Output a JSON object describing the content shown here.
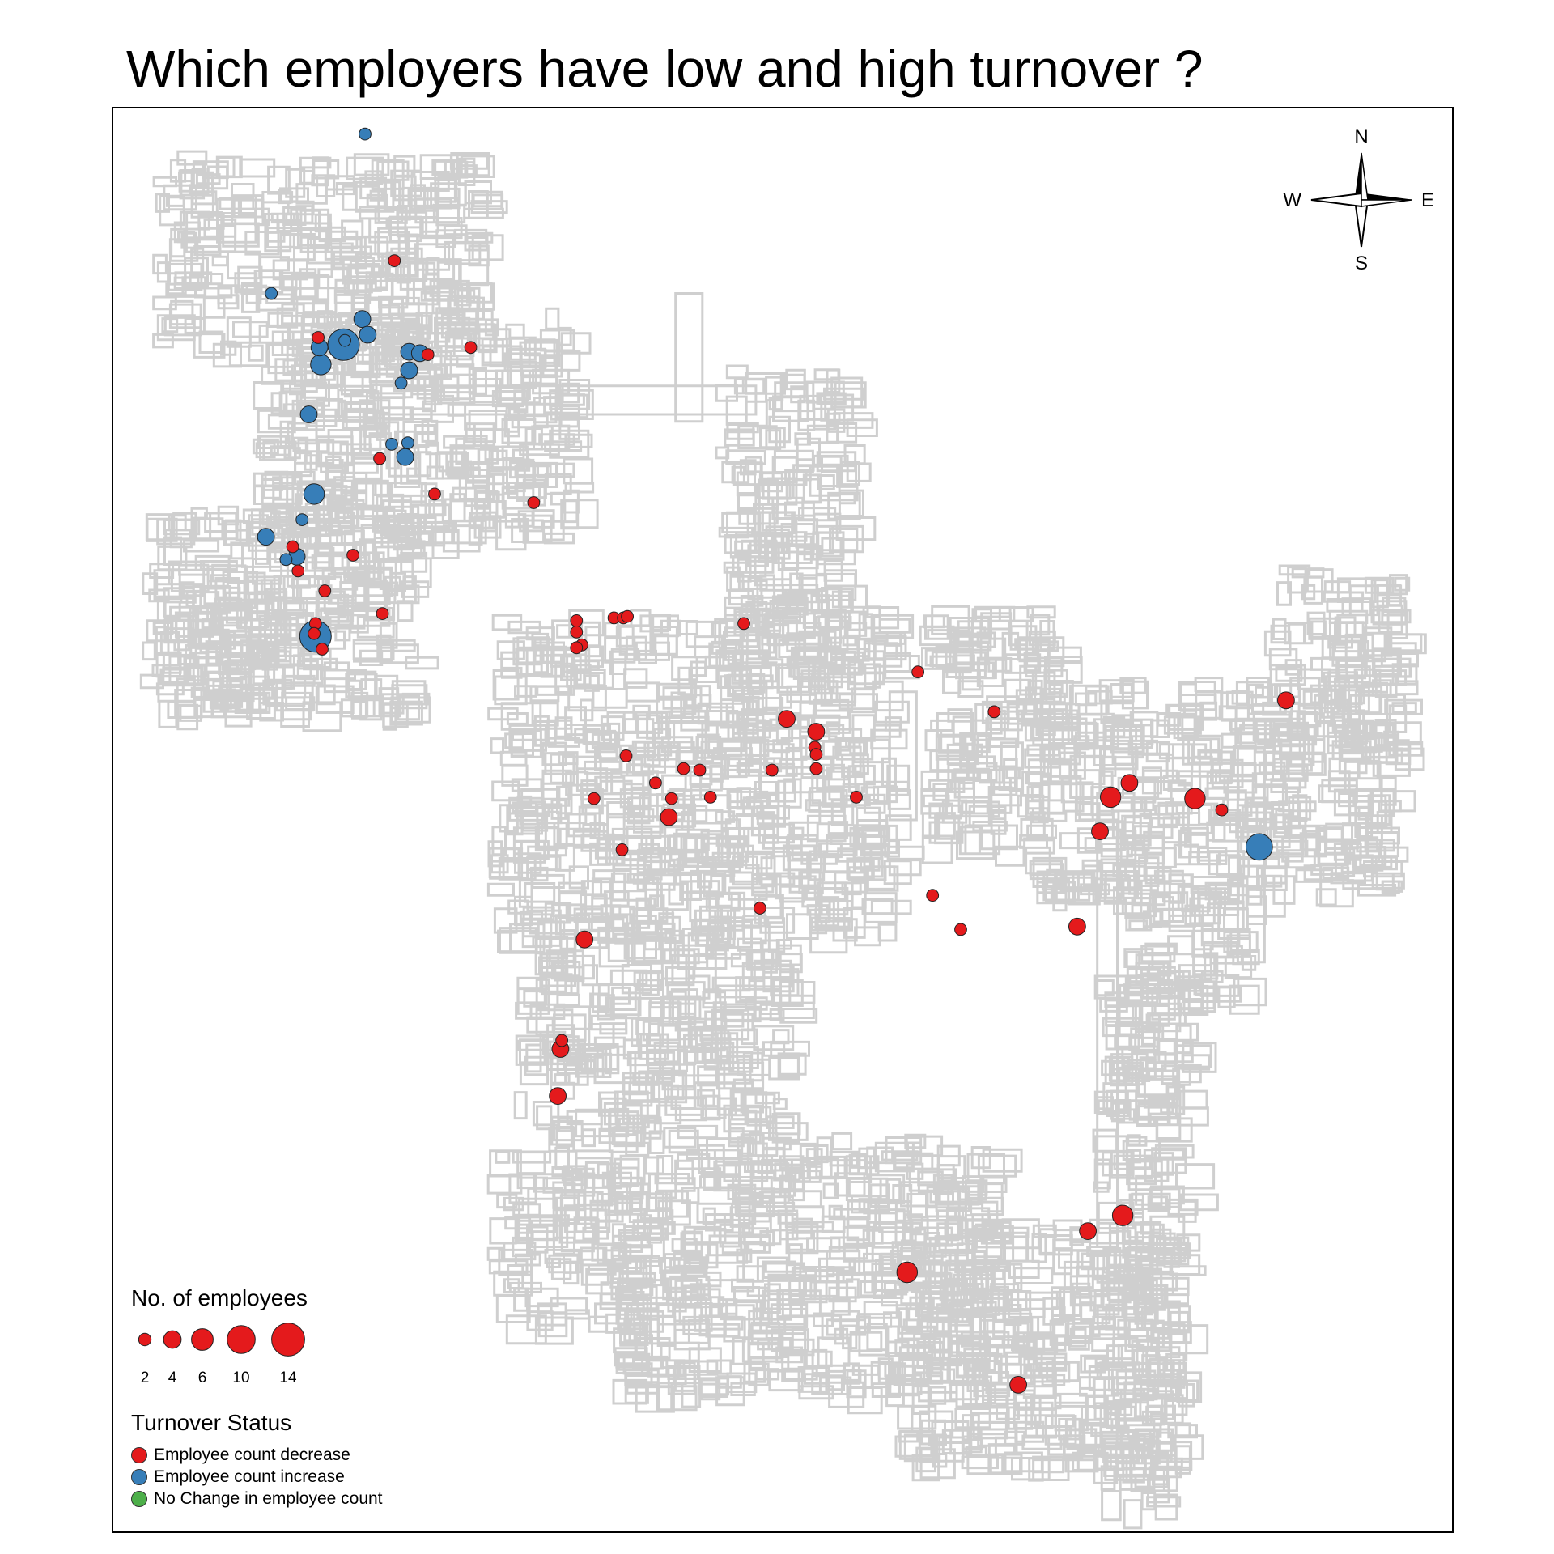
{
  "title": "Which employers have low and high turnover ?",
  "compass": {
    "n": "N",
    "s": "S",
    "e": "E",
    "w": "W"
  },
  "legend": {
    "size_title": "No. of employees",
    "sizes": [
      {
        "label": "2",
        "value": 2
      },
      {
        "label": "4",
        "value": 4
      },
      {
        "label": "6",
        "value": 6
      },
      {
        "label": "10",
        "value": 10
      },
      {
        "label": "14",
        "value": 14
      }
    ],
    "status_title": "Turnover Status",
    "statuses": [
      {
        "key": "decrease",
        "label": "Employee count decrease",
        "color": "#e41a1c"
      },
      {
        "key": "increase",
        "label": "Employee count increase",
        "color": "#377eb8"
      },
      {
        "key": "nochange",
        "label": "No Change in employee count",
        "color": "#4daf4a"
      }
    ]
  },
  "colors": {
    "road": "#cfcfcf",
    "frame": "#000000",
    "outline": "#222222"
  },
  "chart_data": {
    "type": "scatter",
    "description_units": "x,y are normalized map coordinates (0=west/north, 1=east/south); size = number of employees",
    "points": [
      {
        "x": 0.188,
        "y": 0.018,
        "size": 2,
        "status": "increase"
      },
      {
        "x": 0.21,
        "y": 0.107,
        "size": 2,
        "status": "decrease"
      },
      {
        "x": 0.118,
        "y": 0.13,
        "size": 2,
        "status": "increase"
      },
      {
        "x": 0.186,
        "y": 0.148,
        "size": 4,
        "status": "increase"
      },
      {
        "x": 0.19,
        "y": 0.159,
        "size": 4,
        "status": "increase"
      },
      {
        "x": 0.153,
        "y": 0.161,
        "size": 2,
        "status": "decrease"
      },
      {
        "x": 0.172,
        "y": 0.166,
        "size": 14,
        "status": "increase"
      },
      {
        "x": 0.154,
        "y": 0.168,
        "size": 4,
        "status": "increase"
      },
      {
        "x": 0.173,
        "y": 0.163,
        "size": 2,
        "status": "increase"
      },
      {
        "x": 0.221,
        "y": 0.171,
        "size": 4,
        "status": "increase"
      },
      {
        "x": 0.229,
        "y": 0.172,
        "size": 4,
        "status": "increase"
      },
      {
        "x": 0.235,
        "y": 0.173,
        "size": 2,
        "status": "decrease"
      },
      {
        "x": 0.267,
        "y": 0.168,
        "size": 2,
        "status": "decrease"
      },
      {
        "x": 0.155,
        "y": 0.18,
        "size": 6,
        "status": "increase"
      },
      {
        "x": 0.221,
        "y": 0.184,
        "size": 4,
        "status": "increase"
      },
      {
        "x": 0.215,
        "y": 0.193,
        "size": 2,
        "status": "increase"
      },
      {
        "x": 0.146,
        "y": 0.215,
        "size": 4,
        "status": "increase"
      },
      {
        "x": 0.208,
        "y": 0.236,
        "size": 2,
        "status": "increase"
      },
      {
        "x": 0.22,
        "y": 0.235,
        "size": 2,
        "status": "increase"
      },
      {
        "x": 0.218,
        "y": 0.245,
        "size": 4,
        "status": "increase"
      },
      {
        "x": 0.199,
        "y": 0.246,
        "size": 2,
        "status": "decrease"
      },
      {
        "x": 0.15,
        "y": 0.271,
        "size": 6,
        "status": "increase"
      },
      {
        "x": 0.24,
        "y": 0.271,
        "size": 2,
        "status": "decrease"
      },
      {
        "x": 0.314,
        "y": 0.277,
        "size": 2,
        "status": "decrease"
      },
      {
        "x": 0.141,
        "y": 0.289,
        "size": 2,
        "status": "increase"
      },
      {
        "x": 0.114,
        "y": 0.301,
        "size": 4,
        "status": "increase"
      },
      {
        "x": 0.134,
        "y": 0.308,
        "size": 2,
        "status": "decrease"
      },
      {
        "x": 0.137,
        "y": 0.315,
        "size": 4,
        "status": "increase"
      },
      {
        "x": 0.129,
        "y": 0.317,
        "size": 2,
        "status": "increase"
      },
      {
        "x": 0.179,
        "y": 0.314,
        "size": 2,
        "status": "decrease"
      },
      {
        "x": 0.138,
        "y": 0.325,
        "size": 2,
        "status": "decrease"
      },
      {
        "x": 0.158,
        "y": 0.339,
        "size": 2,
        "status": "decrease"
      },
      {
        "x": 0.201,
        "y": 0.355,
        "size": 2,
        "status": "decrease"
      },
      {
        "x": 0.151,
        "y": 0.362,
        "size": 2,
        "status": "decrease"
      },
      {
        "x": 0.151,
        "y": 0.371,
        "size": 14,
        "status": "increase"
      },
      {
        "x": 0.15,
        "y": 0.369,
        "size": 2,
        "status": "decrease"
      },
      {
        "x": 0.156,
        "y": 0.38,
        "size": 2,
        "status": "decrease"
      },
      {
        "x": 0.346,
        "y": 0.36,
        "size": 2,
        "status": "decrease"
      },
      {
        "x": 0.374,
        "y": 0.358,
        "size": 2,
        "status": "decrease"
      },
      {
        "x": 0.381,
        "y": 0.358,
        "size": 2,
        "status": "decrease"
      },
      {
        "x": 0.384,
        "y": 0.357,
        "size": 2,
        "status": "decrease"
      },
      {
        "x": 0.471,
        "y": 0.362,
        "size": 2,
        "status": "decrease"
      },
      {
        "x": 0.346,
        "y": 0.368,
        "size": 2,
        "status": "decrease"
      },
      {
        "x": 0.35,
        "y": 0.377,
        "size": 2,
        "status": "decrease"
      },
      {
        "x": 0.346,
        "y": 0.379,
        "size": 2,
        "status": "decrease"
      },
      {
        "x": 0.601,
        "y": 0.396,
        "size": 2,
        "status": "decrease"
      },
      {
        "x": 0.658,
        "y": 0.424,
        "size": 2,
        "status": "decrease"
      },
      {
        "x": 0.876,
        "y": 0.416,
        "size": 4,
        "status": "decrease"
      },
      {
        "x": 0.503,
        "y": 0.429,
        "size": 4,
        "status": "decrease"
      },
      {
        "x": 0.525,
        "y": 0.438,
        "size": 4,
        "status": "decrease"
      },
      {
        "x": 0.524,
        "y": 0.449,
        "size": 2,
        "status": "decrease"
      },
      {
        "x": 0.525,
        "y": 0.454,
        "size": 2,
        "status": "decrease"
      },
      {
        "x": 0.525,
        "y": 0.464,
        "size": 2,
        "status": "decrease"
      },
      {
        "x": 0.383,
        "y": 0.455,
        "size": 2,
        "status": "decrease"
      },
      {
        "x": 0.426,
        "y": 0.464,
        "size": 2,
        "status": "decrease"
      },
      {
        "x": 0.438,
        "y": 0.465,
        "size": 2,
        "status": "decrease"
      },
      {
        "x": 0.492,
        "y": 0.465,
        "size": 2,
        "status": "decrease"
      },
      {
        "x": 0.405,
        "y": 0.474,
        "size": 2,
        "status": "decrease"
      },
      {
        "x": 0.759,
        "y": 0.474,
        "size": 4,
        "status": "decrease"
      },
      {
        "x": 0.745,
        "y": 0.484,
        "size": 6,
        "status": "decrease"
      },
      {
        "x": 0.808,
        "y": 0.485,
        "size": 6,
        "status": "decrease"
      },
      {
        "x": 0.359,
        "y": 0.485,
        "size": 2,
        "status": "decrease"
      },
      {
        "x": 0.417,
        "y": 0.485,
        "size": 2,
        "status": "decrease"
      },
      {
        "x": 0.446,
        "y": 0.484,
        "size": 2,
        "status": "decrease"
      },
      {
        "x": 0.555,
        "y": 0.484,
        "size": 2,
        "status": "decrease"
      },
      {
        "x": 0.828,
        "y": 0.493,
        "size": 2,
        "status": "decrease"
      },
      {
        "x": 0.415,
        "y": 0.498,
        "size": 4,
        "status": "decrease"
      },
      {
        "x": 0.737,
        "y": 0.508,
        "size": 4,
        "status": "decrease"
      },
      {
        "x": 0.856,
        "y": 0.519,
        "size": 10,
        "status": "increase"
      },
      {
        "x": 0.38,
        "y": 0.521,
        "size": 2,
        "status": "decrease"
      },
      {
        "x": 0.612,
        "y": 0.553,
        "size": 2,
        "status": "decrease"
      },
      {
        "x": 0.483,
        "y": 0.562,
        "size": 2,
        "status": "decrease"
      },
      {
        "x": 0.633,
        "y": 0.577,
        "size": 2,
        "status": "decrease"
      },
      {
        "x": 0.72,
        "y": 0.575,
        "size": 4,
        "status": "decrease"
      },
      {
        "x": 0.352,
        "y": 0.584,
        "size": 4,
        "status": "decrease"
      },
      {
        "x": 0.335,
        "y": 0.655,
        "size": 2,
        "status": "decrease"
      },
      {
        "x": 0.334,
        "y": 0.661,
        "size": 4,
        "status": "decrease"
      },
      {
        "x": 0.332,
        "y": 0.694,
        "size": 4,
        "status": "decrease"
      },
      {
        "x": 0.754,
        "y": 0.778,
        "size": 6,
        "status": "decrease"
      },
      {
        "x": 0.728,
        "y": 0.789,
        "size": 4,
        "status": "decrease"
      },
      {
        "x": 0.593,
        "y": 0.818,
        "size": 6,
        "status": "decrease"
      },
      {
        "x": 0.676,
        "y": 0.897,
        "size": 4,
        "status": "decrease"
      }
    ]
  }
}
